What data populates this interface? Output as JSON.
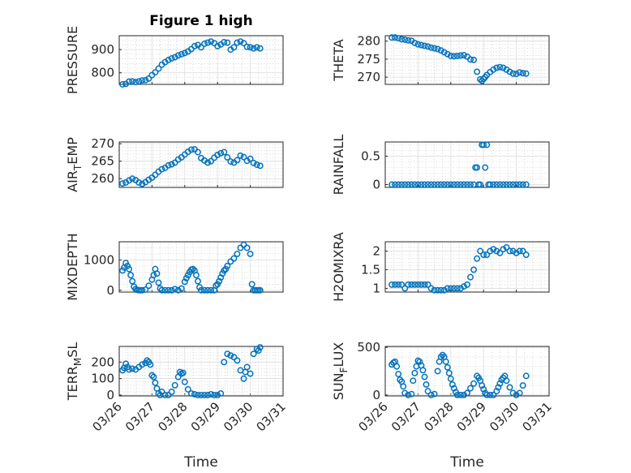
{
  "chart_data": [
    {
      "type": "scatter",
      "title": "Figure 1 high",
      "ylabel": "PRESSURE",
      "ylabel_parts": [
        "PRESSURE"
      ],
      "xlim": [
        26,
        31
      ],
      "ylim": [
        750,
        960
      ],
      "yticks": [
        800,
        900
      ],
      "yticklabels": [
        "800",
        "900"
      ],
      "color": "#0072BD",
      "series": [
        {
          "x": [
            26.1,
            26.2,
            26.3,
            26.4,
            26.5,
            26.6,
            26.7,
            26.8,
            26.9,
            27.0,
            27.1,
            27.2,
            27.3,
            27.4,
            27.5,
            27.6,
            27.7,
            27.8,
            27.9,
            28.0,
            28.1,
            28.2,
            28.3,
            28.4,
            28.5,
            28.6,
            28.7,
            28.8,
            28.9,
            29.0,
            29.1,
            29.2,
            29.3,
            29.4,
            29.5,
            29.6,
            29.7,
            29.8,
            29.9,
            30.0,
            30.1,
            30.2,
            30.3
          ],
          "y": [
            750,
            752,
            762,
            763,
            760,
            763,
            767,
            768,
            775,
            790,
            802,
            818,
            835,
            846,
            855,
            862,
            867,
            875,
            880,
            885,
            892,
            902,
            915,
            920,
            910,
            925,
            930,
            935,
            928,
            915,
            922,
            932,
            930,
            900,
            910,
            930,
            935,
            928,
            912,
            910,
            905,
            910,
            905
          ]
        }
      ]
    },
    {
      "type": "scatter",
      "title": "",
      "ylabel": "THETA",
      "ylabel_parts": [
        "THETA"
      ],
      "xlim": [
        26,
        31
      ],
      "ylim": [
        268,
        281.5
      ],
      "yticks": [
        270,
        275,
        280
      ],
      "yticklabels": [
        "270",
        "275",
        "280"
      ],
      "color": "#0072BD",
      "series": [
        {
          "x": [
            26.2,
            26.3,
            26.4,
            26.5,
            26.6,
            26.7,
            26.8,
            26.9,
            27.0,
            27.1,
            27.2,
            27.3,
            27.4,
            27.5,
            27.6,
            27.7,
            27.8,
            27.9,
            28.0,
            28.1,
            28.2,
            28.3,
            28.4,
            28.5,
            28.6,
            28.7,
            28.8,
            28.9,
            28.95,
            29.0,
            29.05,
            29.1,
            29.2,
            29.3,
            29.4,
            29.5,
            29.6,
            29.7,
            29.8,
            29.9,
            30.0,
            30.1,
            30.2,
            30.3
          ],
          "y": [
            281,
            281,
            280.8,
            280.5,
            280.4,
            280.2,
            280.1,
            279.5,
            279.1,
            278.9,
            278.7,
            278.5,
            278.2,
            278.0,
            277.8,
            277.4,
            276.9,
            276.4,
            275.9,
            275.8,
            275.9,
            276.0,
            276.1,
            275.7,
            274.9,
            274.8,
            271.5,
            269.4,
            269.0,
            269.5,
            270.0,
            270.6,
            271.4,
            272.1,
            272.6,
            272.8,
            272.6,
            272.1,
            271.5,
            271.0,
            270.9,
            271.3,
            271.1,
            271.0
          ]
        }
      ]
    },
    {
      "type": "scatter",
      "title": "",
      "ylabel": "AIR_TEMP",
      "ylabel_parts": [
        "AIR",
        "T",
        "EMP"
      ],
      "xlim": [
        26,
        31
      ],
      "ylim": [
        257.5,
        270.5
      ],
      "yticks": [
        260,
        265,
        270
      ],
      "yticklabels": [
        "260",
        "265",
        "270"
      ],
      "color": "#0072BD",
      "series": [
        {
          "x": [
            26.1,
            26.2,
            26.3,
            26.4,
            26.5,
            26.6,
            26.7,
            26.8,
            26.9,
            27.0,
            27.1,
            27.2,
            27.3,
            27.4,
            27.5,
            27.6,
            27.7,
            27.8,
            27.9,
            28.0,
            28.1,
            28.2,
            28.3,
            28.4,
            28.5,
            28.6,
            28.7,
            28.8,
            28.9,
            29.0,
            29.1,
            29.2,
            29.3,
            29.4,
            29.5,
            29.6,
            29.7,
            29.8,
            29.9,
            30.0,
            30.1,
            30.2,
            30.3
          ],
          "y": [
            258.6,
            258.9,
            259.5,
            260.0,
            259.6,
            258.9,
            258.5,
            259.0,
            259.7,
            260.3,
            261.1,
            262.0,
            262.7,
            263.1,
            263.8,
            264.1,
            264.6,
            265.5,
            266.1,
            266.9,
            267.7,
            268.3,
            268.4,
            267.6,
            265.9,
            265.2,
            264.6,
            265.0,
            266.0,
            266.8,
            267.3,
            267.6,
            266.1,
            264.9,
            264.6,
            265.3,
            266.6,
            266.2,
            265.1,
            265.7,
            264.5,
            264.0,
            263.7
          ]
        }
      ]
    },
    {
      "type": "scatter",
      "title": "",
      "ylabel": "RAINFALL",
      "ylabel_parts": [
        "RAINFALL"
      ],
      "xlim": [
        26,
        31
      ],
      "ylim": [
        -0.05,
        0.75
      ],
      "yticks": [
        0,
        0.5
      ],
      "yticklabels": [
        "0",
        "0.5"
      ],
      "color": "#0072BD",
      "series": [
        {
          "x": [
            26.2,
            26.3,
            26.4,
            26.5,
            26.6,
            26.7,
            26.8,
            26.9,
            27.0,
            27.1,
            27.2,
            27.3,
            27.4,
            27.5,
            27.6,
            27.7,
            27.8,
            27.9,
            28.0,
            28.1,
            28.2,
            28.3,
            28.4,
            28.5,
            28.6,
            28.7,
            28.75,
            28.8,
            28.85,
            28.9,
            28.95,
            29.0,
            29.05,
            29.1,
            29.15,
            29.2,
            29.3,
            29.4,
            29.5,
            29.6,
            29.7,
            29.8,
            29.9,
            30.0,
            30.1,
            30.2,
            30.3
          ],
          "y": [
            0,
            0,
            0,
            0,
            0,
            0,
            0,
            0,
            0,
            0,
            0,
            0,
            0,
            0,
            0,
            0,
            0,
            0,
            0,
            0,
            0,
            0,
            0,
            0,
            0,
            0,
            0.3,
            0.3,
            0,
            0,
            0.7,
            0.7,
            0.3,
            0.7,
            0,
            0,
            0,
            0,
            0,
            0,
            0,
            0,
            0,
            0,
            0,
            0,
            0
          ]
        }
      ]
    },
    {
      "type": "scatter",
      "title": "",
      "ylabel": "MIXDEPTH",
      "ylabel_parts": [
        "MIXDEPTH"
      ],
      "xlim": [
        26,
        31
      ],
      "ylim": [
        -60,
        1600
      ],
      "yticks": [
        0,
        1000
      ],
      "yticklabels": [
        "0",
        "1000"
      ],
      "color": "#0072BD",
      "series": [
        {
          "x": [
            26.1,
            26.15,
            26.2,
            26.25,
            26.3,
            26.35,
            26.4,
            26.45,
            26.5,
            26.55,
            26.6,
            26.65,
            26.7,
            26.8,
            26.9,
            27.0,
            27.05,
            27.1,
            27.15,
            27.2,
            27.25,
            27.3,
            27.4,
            27.5,
            27.6,
            27.7,
            27.8,
            27.9,
            28.0,
            28.05,
            28.1,
            28.15,
            28.2,
            28.25,
            28.3,
            28.35,
            28.4,
            28.45,
            28.5,
            28.6,
            28.7,
            28.8,
            28.9,
            28.95,
            29.0,
            29.05,
            29.1,
            29.15,
            29.2,
            29.25,
            29.3,
            29.4,
            29.5,
            29.6,
            29.7,
            29.8,
            29.9,
            30.0,
            30.05,
            30.1,
            30.15,
            30.2,
            30.25,
            30.3
          ],
          "y": [
            650,
            750,
            900,
            800,
            700,
            500,
            300,
            120,
            40,
            10,
            0,
            0,
            0,
            20,
            150,
            350,
            500,
            700,
            550,
            250,
            60,
            0,
            0,
            0,
            0,
            40,
            0,
            60,
            280,
            400,
            500,
            600,
            680,
            700,
            650,
            500,
            300,
            100,
            0,
            0,
            0,
            0,
            0,
            150,
            200,
            300,
            420,
            550,
            650,
            700,
            800,
            950,
            1050,
            1200,
            1400,
            1500,
            1400,
            1200,
            200,
            0,
            0,
            0,
            0,
            0
          ]
        }
      ]
    },
    {
      "type": "scatter",
      "title": "",
      "ylabel": "H2OMIXRA",
      "ylabel_parts": [
        "H2OMIXRA"
      ],
      "xlim": [
        26,
        31
      ],
      "ylim": [
        0.9,
        2.25
      ],
      "yticks": [
        1,
        1.5,
        2
      ],
      "yticklabels": [
        "1",
        "1.5",
        "2"
      ],
      "color": "#0072BD",
      "series": [
        {
          "x": [
            26.2,
            26.3,
            26.4,
            26.5,
            26.6,
            26.7,
            26.8,
            26.9,
            27.0,
            27.1,
            27.2,
            27.3,
            27.4,
            27.5,
            27.6,
            27.7,
            27.8,
            27.9,
            28.0,
            28.1,
            28.2,
            28.3,
            28.4,
            28.5,
            28.6,
            28.7,
            28.8,
            28.9,
            29.0,
            29.1,
            29.2,
            29.3,
            29.4,
            29.5,
            29.6,
            29.7,
            29.8,
            29.9,
            30.0,
            30.1,
            30.2,
            30.3
          ],
          "y": [
            1.1,
            1.1,
            1.1,
            1.1,
            1.0,
            1.1,
            1.1,
            1.1,
            1.1,
            1.1,
            1.1,
            1.1,
            1.0,
            0.95,
            0.95,
            0.95,
            0.95,
            1.0,
            1.0,
            1.0,
            1.0,
            1.0,
            1.05,
            1.1,
            1.3,
            1.5,
            1.8,
            2.0,
            1.9,
            1.9,
            2.0,
            2.05,
            2.0,
            1.95,
            2.05,
            2.1,
            2.0,
            2.0,
            1.95,
            2.0,
            2.0,
            1.9
          ]
        }
      ]
    },
    {
      "type": "scatter",
      "title": "",
      "ylabel": "TERR_MSL",
      "ylabel_parts": [
        "TERR",
        "M",
        "SL"
      ],
      "xlim": [
        26,
        31
      ],
      "ylim": [
        -5,
        295
      ],
      "yticks": [
        0,
        100,
        200
      ],
      "yticklabels": [
        "0",
        "100",
        "200"
      ],
      "color": "#0072BD",
      "series": [
        {
          "x": [
            26.1,
            26.15,
            26.2,
            26.25,
            26.3,
            26.4,
            26.5,
            26.6,
            26.7,
            26.8,
            26.85,
            26.9,
            26.95,
            27.0,
            27.05,
            27.1,
            27.15,
            27.2,
            27.25,
            27.3,
            27.4,
            27.5,
            27.6,
            27.7,
            27.8,
            27.85,
            27.9,
            27.95,
            28.0,
            28.1,
            28.2,
            28.3,
            28.4,
            28.5,
            28.6,
            28.7,
            28.8,
            28.9,
            29.0,
            29.1,
            29.2,
            29.3,
            29.4,
            29.5,
            29.6,
            29.7,
            29.8,
            29.85,
            29.9,
            30.0,
            30.1,
            30.2,
            30.25,
            30.3
          ],
          "y": [
            150,
            165,
            190,
            170,
            155,
            160,
            155,
            170,
            185,
            195,
            210,
            200,
            185,
            120,
            110,
            75,
            40,
            10,
            0,
            20,
            0,
            0,
            20,
            60,
            110,
            140,
            130,
            135,
            80,
            35,
            10,
            5,
            0,
            0,
            0,
            0,
            5,
            0,
            0,
            10,
            200,
            250,
            240,
            230,
            210,
            150,
            100,
            140,
            170,
            130,
            250,
            280,
            270,
            290
          ]
        }
      ]
    },
    {
      "type": "scatter",
      "title": "",
      "ylabel": "SUN_FLUX",
      "ylabel_parts": [
        "SUN",
        "F",
        "LUX"
      ],
      "xlim": [
        26,
        31
      ],
      "ylim": [
        -10,
        510
      ],
      "yticks": [
        0,
        500
      ],
      "yticklabels": [
        "0",
        "500"
      ],
      "color": "#0072BD",
      "series": [
        {
          "x": [
            26.2,
            26.25,
            26.3,
            26.35,
            26.4,
            26.45,
            26.5,
            26.55,
            26.6,
            26.7,
            26.8,
            26.85,
            26.9,
            26.95,
            27.0,
            27.05,
            27.1,
            27.15,
            27.2,
            27.25,
            27.3,
            27.4,
            27.5,
            27.6,
            27.65,
            27.7,
            27.75,
            27.8,
            27.85,
            27.9,
            27.95,
            28.0,
            28.05,
            28.1,
            28.15,
            28.2,
            28.3,
            28.4,
            28.5,
            28.6,
            28.7,
            28.8,
            28.85,
            28.9,
            28.95,
            29.0,
            29.05,
            29.1,
            29.2,
            29.3,
            29.4,
            29.45,
            29.5,
            29.55,
            29.6,
            29.65,
            29.7,
            29.8,
            29.9,
            30.0,
            30.1,
            30.2,
            30.3
          ],
          "y": [
            320,
            340,
            350,
            300,
            220,
            160,
            140,
            90,
            20,
            0,
            10,
            150,
            230,
            300,
            360,
            350,
            310,
            260,
            190,
            110,
            40,
            0,
            10,
            250,
            350,
            400,
            420,
            400,
            350,
            290,
            230,
            170,
            110,
            70,
            30,
            0,
            0,
            0,
            20,
            70,
            120,
            200,
            180,
            150,
            100,
            60,
            20,
            0,
            0,
            0,
            40,
            80,
            120,
            160,
            180,
            200,
            150,
            80,
            20,
            0,
            20,
            100,
            200
          ]
        }
      ]
    }
  ],
  "x_axis": {
    "xlabel": "Time",
    "xtick_values": [
      26,
      27,
      28,
      29,
      30,
      31
    ],
    "xtick_labels": [
      "03/26",
      "03/27",
      "03/28",
      "03/29",
      "03/30",
      "03/31"
    ]
  }
}
